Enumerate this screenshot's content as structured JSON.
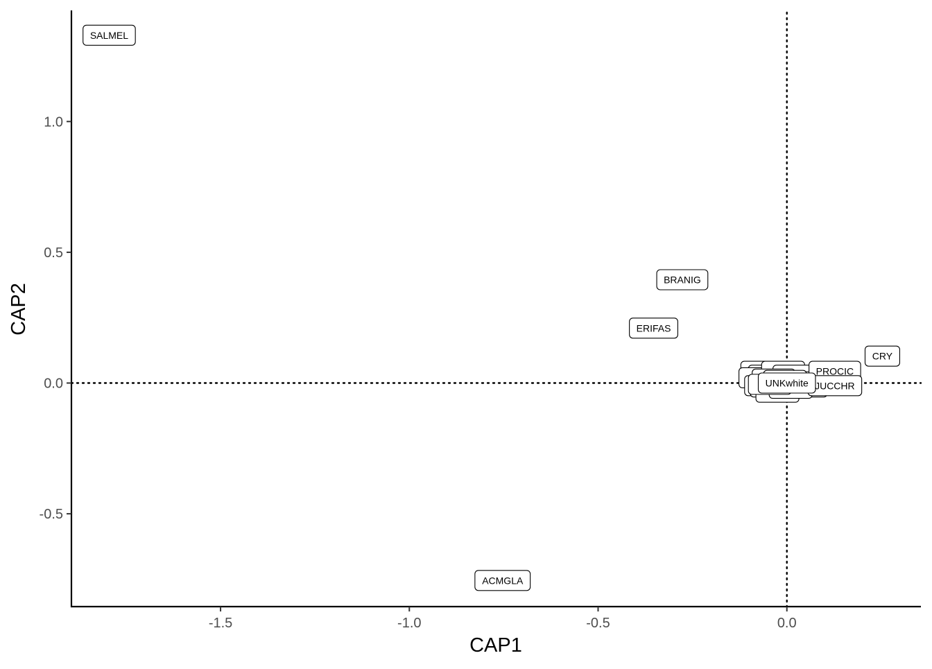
{
  "chart_data": {
    "type": "scatter",
    "title": "",
    "xlabel": "CAP1",
    "ylabel": "CAP2",
    "xlim": [
      -1.895,
      0.355
    ],
    "ylim": [
      -0.855,
      1.425
    ],
    "x_ticks": [
      {
        "value": -1.5,
        "label": "-1.5"
      },
      {
        "value": -1.0,
        "label": "-1.0"
      },
      {
        "value": -0.5,
        "label": "-0.5"
      },
      {
        "value": 0.0,
        "label": "0.0"
      }
    ],
    "y_ticks": [
      {
        "value": -0.5,
        "label": "-0.5"
      },
      {
        "value": 0.0,
        "label": "0.0"
      },
      {
        "value": 0.5,
        "label": "0.5"
      },
      {
        "value": 1.0,
        "label": "1.0"
      }
    ],
    "reference_lines": {
      "x": 0,
      "y": 0,
      "style": "dotted"
    },
    "grid": false,
    "legend": "none",
    "points": [
      {
        "label": "SALMEL",
        "x": -1.795,
        "y": 1.33
      },
      {
        "label": "BRANIG",
        "x": -0.277,
        "y": 0.395
      },
      {
        "label": "ERIFAS",
        "x": -0.353,
        "y": 0.21
      },
      {
        "label": "ACMGLA",
        "x": -0.753,
        "y": -0.755
      },
      {
        "label": "CRY",
        "x": 0.253,
        "y": 0.103
      },
      {
        "label": "",
        "x": -0.065,
        "y": 0.045
      },
      {
        "label": "",
        "x": -0.045,
        "y": 0.03
      },
      {
        "label": "",
        "x": -0.05,
        "y": 0.01
      },
      {
        "label": "",
        "x": -0.07,
        "y": 0.02
      },
      {
        "label": "",
        "x": -0.055,
        "y": -0.01
      },
      {
        "label": "",
        "x": -0.04,
        "y": -0.015
      },
      {
        "label": "",
        "x": -0.01,
        "y": 0.045
      },
      {
        "label": "",
        "x": 0.02,
        "y": 0.03
      },
      {
        "label": "",
        "x": 0.04,
        "y": 0.005
      },
      {
        "label": "",
        "x": 0.05,
        "y": -0.015
      },
      {
        "label": "",
        "x": -0.025,
        "y": -0.035
      },
      {
        "label": "",
        "x": 0.01,
        "y": -0.02
      },
      {
        "label": "",
        "x": -0.035,
        "y": 0.015
      },
      {
        "label": "",
        "x": -0.005,
        "y": 0.01
      },
      {
        "label": "",
        "x": -0.045,
        "y": -0.005
      },
      {
        "label": "PROCIC",
        "x": 0.127,
        "y": 0.045
      },
      {
        "label": "JUCCHR",
        "x": 0.127,
        "y": -0.01
      },
      {
        "label": "UNKwhite",
        "x": 0.0,
        "y": 0.0
      }
    ],
    "colors": {
      "axis": "#000000",
      "tick_text": "#4d4d4d",
      "label_box": "#ffffff",
      "label_border": "#000000"
    }
  }
}
